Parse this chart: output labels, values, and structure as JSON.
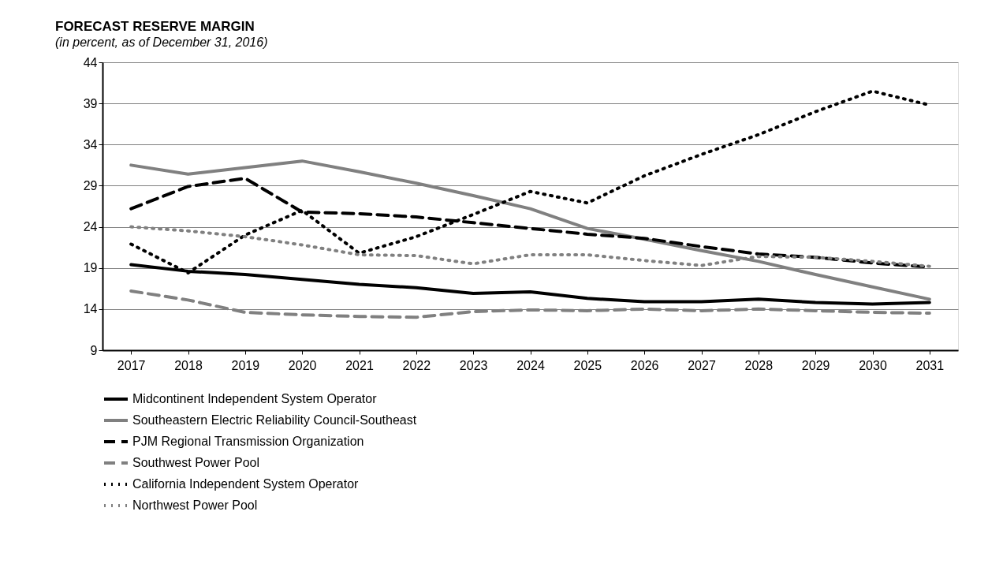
{
  "chart_data": {
    "type": "line",
    "title": "FORECAST RESERVE MARGIN",
    "subtitle": "(in percent, as of December 31, 2016)",
    "categories": [
      "2017",
      "2018",
      "2019",
      "2020",
      "2021",
      "2022",
      "2023",
      "2024",
      "2025",
      "2026",
      "2027",
      "2028",
      "2029",
      "2030",
      "2031"
    ],
    "series": [
      {
        "name": "Midcontinent Independent System Operator",
        "color": "#000000",
        "line_style": "solid",
        "values": [
          19.4,
          18.6,
          18.2,
          17.6,
          17.0,
          16.6,
          15.9,
          16.1,
          15.3,
          14.9,
          14.9,
          15.2,
          14.8,
          14.6,
          14.8
        ]
      },
      {
        "name": "Southeastern Electric Reliability Council-Southeast",
        "color": "#808080",
        "line_style": "solid",
        "values": [
          31.5,
          30.4,
          31.2,
          32.0,
          30.7,
          29.3,
          27.8,
          26.2,
          23.8,
          22.5,
          21.1,
          19.8,
          18.2,
          16.7,
          15.2
        ]
      },
      {
        "name": "PJM Regional Transmission Organization",
        "color": "#000000",
        "line_style": "dashed",
        "values": [
          26.2,
          28.9,
          29.9,
          25.8,
          25.6,
          25.2,
          24.5,
          23.8,
          23.1,
          22.6,
          21.6,
          20.7,
          20.3,
          19.6,
          19.1
        ]
      },
      {
        "name": "Southwest Power Pool",
        "color": "#808080",
        "line_style": "dashed",
        "values": [
          16.2,
          15.1,
          13.6,
          13.3,
          13.1,
          13.0,
          13.7,
          13.9,
          13.8,
          14.0,
          13.8,
          14.0,
          13.8,
          13.6,
          13.5
        ]
      },
      {
        "name": "California Independent System Operator",
        "color": "#000000",
        "line_style": "dotted",
        "values": [
          21.9,
          18.4,
          23.0,
          26.0,
          20.8,
          22.8,
          25.5,
          28.3,
          26.9,
          30.2,
          32.8,
          35.2,
          38.0,
          40.5,
          38.8
        ]
      },
      {
        "name": "Northwest Power Pool",
        "color": "#808080",
        "line_style": "dotted",
        "values": [
          24.0,
          23.5,
          22.8,
          21.8,
          20.6,
          20.5,
          19.5,
          20.6,
          20.6,
          19.9,
          19.3,
          20.4,
          20.3,
          19.8,
          19.2
        ]
      }
    ],
    "ylim": [
      9,
      44
    ],
    "yticks": [
      9,
      14,
      19,
      24,
      29,
      34,
      39,
      44
    ],
    "grid": "y",
    "legend": "bottom",
    "marker": "none"
  }
}
